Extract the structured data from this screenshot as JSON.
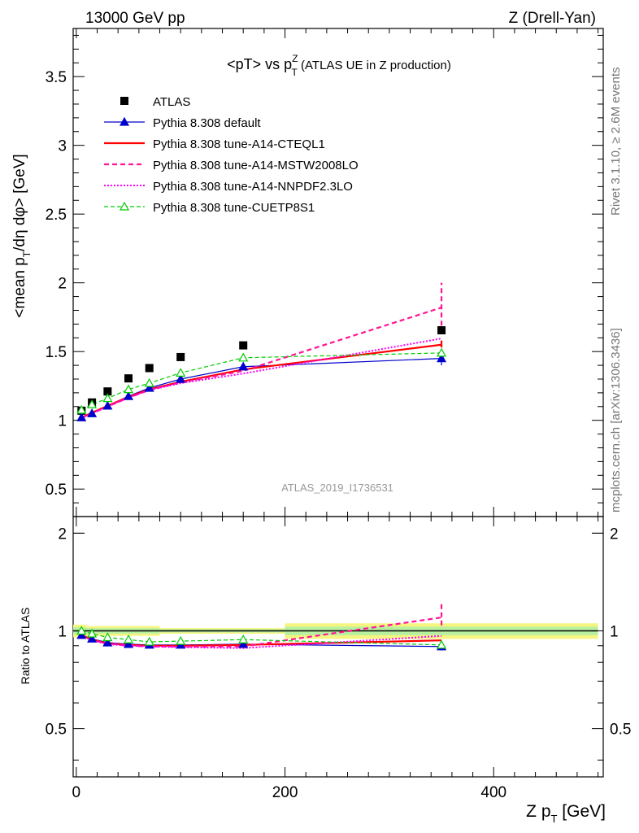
{
  "header": {
    "left": "13000 GeV pp",
    "right": "Z (Drell-Yan)"
  },
  "side_labels": {
    "top": "Rivet 3.1.10, ≥ 2.6M events",
    "bottom": "mcplots.cern.ch [arXiv:1306.3436]"
  },
  "analysis_tag": "ATLAS_2019_I1736531",
  "chart_data": [
    {
      "type": "line",
      "title": "<pT> vs p_T^Z (ATLAS UE in Z production)",
      "title_main": "<pT> vs p",
      "title_sup": "Z",
      "title_sub": "T",
      "title_rest": " (ATLAS UE in Z production)",
      "ylabel": "<mean p_T/dη dφ> [GeV]",
      "ylabel_a": "<mean p",
      "ylabel_sub": "T",
      "ylabel_b": "/dη dφ> [GeV]",
      "xlim": [
        -3,
        505
      ],
      "ylim": [
        0.3,
        3.85
      ],
      "yticks": [
        0.5,
        1,
        1.5,
        2,
        2.5,
        3,
        3.5
      ],
      "ytick_labels": [
        "0.5",
        "1",
        "1.5",
        "2",
        "2.5",
        "3",
        "3.5"
      ],
      "legend_position": "top-left",
      "x": [
        5,
        15,
        30,
        50,
        70,
        100,
        160,
        350
      ],
      "series": [
        {
          "name": "ATLAS",
          "color": "#000000",
          "style": "data",
          "values": [
            1.07,
            1.13,
            1.21,
            1.305,
            1.38,
            1.46,
            1.545,
            1.655
          ]
        },
        {
          "name": "Pythia 8.308 default",
          "color": "#0000cc",
          "style": "solid-thin",
          "marker": "triangle-filled",
          "values": [
            1.02,
            1.05,
            1.105,
            1.175,
            1.235,
            1.3,
            1.39,
            1.45
          ]
        },
        {
          "name": "Pythia 8.308 tune-A14-CTEQL1",
          "color": "#ff0000",
          "style": "solid-thick",
          "values": [
            1.02,
            1.055,
            1.105,
            1.17,
            1.225,
            1.28,
            1.37,
            1.55
          ]
        },
        {
          "name": "Pythia 8.308 tune-A14-MSTW2008LO",
          "color": "#ff1493",
          "style": "dashed",
          "values": [
            1.02,
            1.05,
            1.1,
            1.165,
            1.22,
            1.275,
            1.36,
            1.82
          ]
        },
        {
          "name": "Pythia 8.308 tune-A14-NNPDF2.3LO",
          "color": "#ff00ff",
          "style": "dotted",
          "values": [
            1.015,
            1.05,
            1.1,
            1.165,
            1.22,
            1.27,
            1.34,
            1.595
          ]
        },
        {
          "name": "Pythia 8.308 tune-CUETP8S1",
          "color": "#00cc00",
          "style": "dashed-thin",
          "marker": "triangle-open",
          "values": [
            1.075,
            1.115,
            1.16,
            1.225,
            1.27,
            1.345,
            1.455,
            1.49
          ]
        }
      ]
    },
    {
      "type": "line",
      "ylabel": "Ratio to ATLAS",
      "xlabel": "Z p_T [GeV]",
      "xlabel_a": "Z p",
      "xlabel_sub": "T",
      "xlabel_b": " [GeV]",
      "xlim": [
        -3,
        505
      ],
      "ylim": [
        0.355,
        2.25
      ],
      "log_y": true,
      "xticks": [
        0,
        200,
        400
      ],
      "xtick_labels": [
        "0",
        "200",
        "400"
      ],
      "yticks": [
        0.5,
        1,
        2
      ],
      "ytick_labels": [
        "0.5",
        "1",
        "2"
      ],
      "x": [
        5,
        15,
        30,
        50,
        70,
        100,
        160,
        350
      ],
      "series": [
        {
          "name": "Pythia 8.308 default",
          "values": [
            0.97,
            0.945,
            0.92,
            0.91,
            0.905,
            0.905,
            0.91,
            0.895
          ]
        },
        {
          "name": "Pythia 8.308 tune-A14-CTEQL1",
          "values": [
            0.97,
            0.94,
            0.915,
            0.905,
            0.9,
            0.9,
            0.905,
            0.935
          ]
        },
        {
          "name": "Pythia 8.308 tune-A14-MSTW2008LO",
          "values": [
            0.965,
            0.935,
            0.915,
            0.9,
            0.895,
            0.895,
            0.895,
            1.1
          ]
        },
        {
          "name": "Pythia 8.308 tune-A14-NNPDF2.3LO",
          "values": [
            0.965,
            0.935,
            0.91,
            0.9,
            0.895,
            0.89,
            0.885,
            0.965
          ]
        },
        {
          "name": "Pythia 8.308 tune-CUETP8S1",
          "values": [
            1.0,
            0.98,
            0.955,
            0.94,
            0.925,
            0.93,
            0.94,
            0.905
          ]
        }
      ]
    }
  ]
}
